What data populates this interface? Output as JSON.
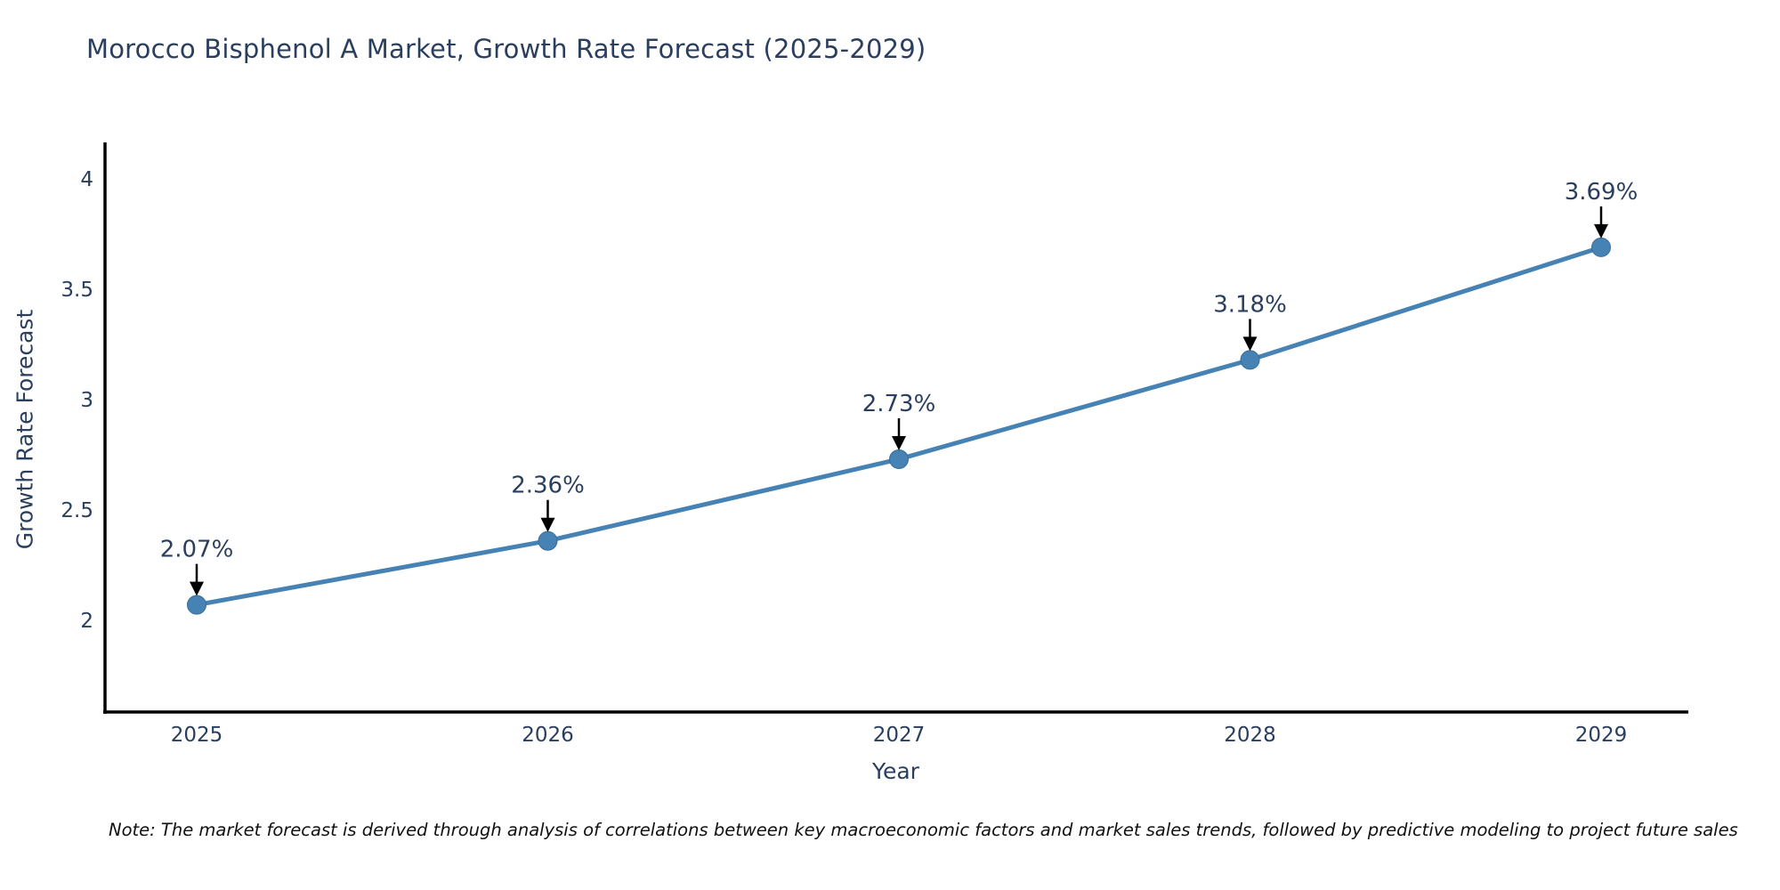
{
  "chart_data": {
    "type": "line",
    "title": "Morocco Bisphenol A Market, Growth Rate Forecast (2025-2029)",
    "xlabel": "Year",
    "ylabel": "Growth Rate Forecast",
    "categories": [
      "2025",
      "2026",
      "2027",
      "2028",
      "2029"
    ],
    "series": [
      {
        "name": "Growth Rate Forecast",
        "values": [
          2.07,
          2.36,
          2.73,
          3.18,
          3.69
        ]
      }
    ],
    "point_labels": [
      "2.07%",
      "2.36%",
      "2.73%",
      "3.18%",
      "3.69%"
    ],
    "ytick_labels": [
      "2",
      "2.5",
      "3",
      "3.5",
      "4"
    ],
    "ytick_values": [
      2,
      2.5,
      3,
      3.5,
      4
    ],
    "ylim": [
      1.58,
      4.17
    ],
    "grid": false,
    "legend_visible": false,
    "note": "Note: The market forecast is derived through analysis of correlations between key macroeconomic factors and market sales trends, followed by predictive modeling to project future sales",
    "colors": {
      "line": "#4682B4",
      "marker": "#4682B4",
      "marker_edge": "#3a6d99",
      "axis": "#000000",
      "tick_text": "#2a3f5f",
      "annotation_text": "#2a3f5f",
      "arrow": "#000000",
      "note_text": "#111111",
      "background": "#ffffff"
    }
  }
}
